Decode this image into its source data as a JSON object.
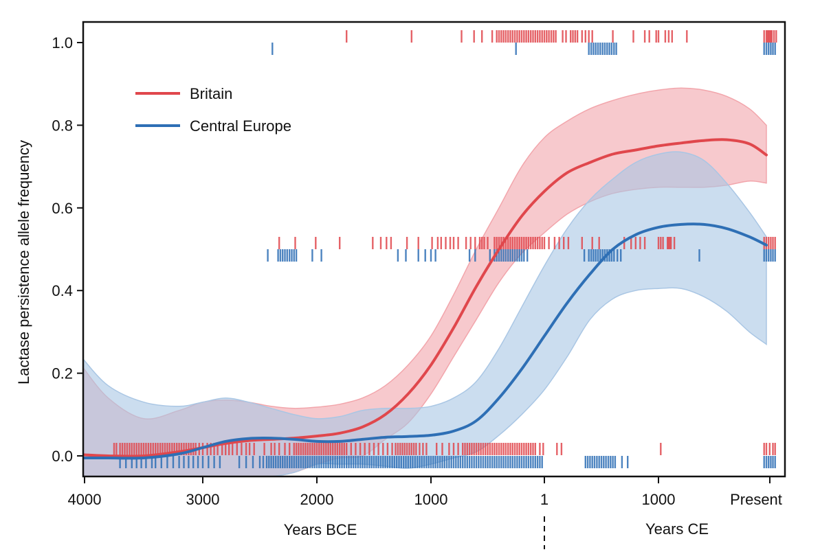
{
  "chart_data": {
    "type": "line",
    "title": "",
    "ylabel": "Lactase persistence allele frequency",
    "xlabel_left": "Years BCE",
    "xlabel_right": "Years CE",
    "xlim": [
      -4030,
      2120
    ],
    "ylim": [
      -0.05,
      1.05
    ],
    "grid": false,
    "legend_position": "top-left",
    "x_ticks": [
      {
        "value": -4000,
        "label": "4000"
      },
      {
        "value": -3000,
        "label": "3000"
      },
      {
        "value": -2000,
        "label": "2000"
      },
      {
        "value": -1000,
        "label": "1000"
      },
      {
        "value": 0,
        "label": "1"
      },
      {
        "value": 1000,
        "label": "1000"
      },
      {
        "value": 1950,
        "label": "Present"
      }
    ],
    "y_ticks": [
      {
        "value": 0.0,
        "label": "0.0"
      },
      {
        "value": 0.2,
        "label": "0.2"
      },
      {
        "value": 0.4,
        "label": "0.4"
      },
      {
        "value": 0.6,
        "label": "0.6"
      },
      {
        "value": 0.8,
        "label": "0.8"
      },
      {
        "value": 1.0,
        "label": "1.0"
      }
    ],
    "series": [
      {
        "name": "Britain",
        "color": "#e0474c",
        "band_color": "#f2a5ab",
        "x": [
          -4030,
          -3800,
          -3500,
          -3200,
          -3000,
          -2800,
          -2600,
          -2400,
          -2200,
          -2000,
          -1800,
          -1600,
          -1400,
          -1200,
          -1000,
          -800,
          -600,
          -400,
          -200,
          0,
          200,
          400,
          600,
          800,
          1000,
          1200,
          1400,
          1600,
          1800,
          1950
        ],
        "y": [
          0.003,
          0.0,
          0.0,
          0.01,
          0.02,
          0.03,
          0.037,
          0.04,
          0.043,
          0.048,
          0.055,
          0.07,
          0.1,
          0.15,
          0.22,
          0.31,
          0.41,
          0.5,
          0.58,
          0.64,
          0.685,
          0.71,
          0.73,
          0.74,
          0.75,
          0.757,
          0.763,
          0.765,
          0.755,
          0.728
        ],
        "upper": [
          0.22,
          0.14,
          0.09,
          0.11,
          0.13,
          0.135,
          0.13,
          0.12,
          0.115,
          0.118,
          0.125,
          0.14,
          0.17,
          0.22,
          0.29,
          0.39,
          0.5,
          0.6,
          0.7,
          0.77,
          0.81,
          0.84,
          0.86,
          0.875,
          0.885,
          0.89,
          0.885,
          0.87,
          0.84,
          0.8
        ],
        "lower": [
          -0.05,
          -0.05,
          -0.05,
          -0.05,
          -0.05,
          -0.05,
          -0.05,
          -0.05,
          -0.04,
          -0.02,
          -0.005,
          0.0,
          0.04,
          0.08,
          0.15,
          0.24,
          0.33,
          0.42,
          0.49,
          0.54,
          0.585,
          0.615,
          0.635,
          0.645,
          0.65,
          0.65,
          0.65,
          0.655,
          0.665,
          0.66
        ]
      },
      {
        "name": "Central Europe",
        "color": "#2e6fb5",
        "band_color": "#a9c6e4",
        "x": [
          -4030,
          -3800,
          -3500,
          -3200,
          -3000,
          -2800,
          -2600,
          -2400,
          -2200,
          -2000,
          -1800,
          -1600,
          -1400,
          -1200,
          -1000,
          -800,
          -600,
          -400,
          -200,
          0,
          200,
          400,
          600,
          800,
          1000,
          1200,
          1400,
          1600,
          1800,
          1950
        ],
        "y": [
          -0.005,
          -0.005,
          -0.005,
          0.005,
          0.02,
          0.035,
          0.042,
          0.043,
          0.04,
          0.035,
          0.035,
          0.04,
          0.045,
          0.047,
          0.05,
          0.06,
          0.085,
          0.14,
          0.21,
          0.29,
          0.37,
          0.44,
          0.5,
          0.535,
          0.553,
          0.56,
          0.56,
          0.55,
          0.53,
          0.51
        ],
        "upper": [
          0.24,
          0.17,
          0.13,
          0.12,
          0.13,
          0.14,
          0.13,
          0.115,
          0.1,
          0.09,
          0.095,
          0.11,
          0.115,
          0.115,
          0.12,
          0.14,
          0.18,
          0.26,
          0.36,
          0.46,
          0.55,
          0.62,
          0.67,
          0.71,
          0.73,
          0.735,
          0.715,
          0.66,
          0.59,
          0.53
        ],
        "lower": [
          -0.05,
          -0.05,
          -0.05,
          -0.05,
          -0.05,
          -0.05,
          -0.05,
          -0.05,
          -0.04,
          -0.02,
          -0.02,
          -0.02,
          -0.025,
          -0.03,
          -0.02,
          -0.005,
          0.01,
          0.05,
          0.1,
          0.16,
          0.24,
          0.33,
          0.38,
          0.4,
          0.405,
          0.405,
          0.385,
          0.35,
          0.3,
          0.27
        ]
      }
    ],
    "rug": {
      "note": "Individual sample genotype marks at allele frequency 0, 0.5, 1 (offset per series)",
      "rows": [
        {
          "series": "Britain",
          "level": 1.0,
          "x": [
            -1740,
            -1170,
            -730,
            -620,
            -550,
            -460,
            -420,
            -400,
            -380,
            -360,
            -340,
            -320,
            -300,
            -280,
            -260,
            -240,
            -220,
            -200,
            -180,
            -160,
            -140,
            -120,
            -100,
            -80,
            -60,
            -40,
            -20,
            0,
            20,
            40,
            60,
            80,
            100,
            160,
            190,
            230,
            250,
            270,
            290,
            330,
            360,
            390,
            420,
            600,
            780,
            880,
            920,
            980,
            1000,
            1060,
            1090,
            1120,
            1250,
            1930,
            1950,
            1960,
            1970,
            1980,
            1990,
            2000,
            2020,
            2040
          ]
        },
        {
          "series": "Central Europe",
          "level": 1.0,
          "x": [
            -2390,
            -250,
            390,
            410,
            430,
            450,
            470,
            490,
            510,
            530,
            550,
            570,
            590,
            610,
            630,
            1930,
            1950,
            1970,
            1990,
            2010,
            2030
          ]
        },
        {
          "series": "Britain",
          "level": 0.5,
          "x": [
            -2330,
            -2190,
            -2010,
            -1800,
            -1510,
            -1440,
            -1390,
            -1350,
            -1210,
            -1110,
            -990,
            -940,
            -910,
            -870,
            -830,
            -800,
            -760,
            -690,
            -650,
            -610,
            -570,
            -550,
            -530,
            -500,
            -440,
            -420,
            -400,
            -380,
            -360,
            -340,
            -320,
            -300,
            -280,
            -260,
            -240,
            -220,
            -200,
            -180,
            -160,
            -140,
            -120,
            -100,
            -80,
            -60,
            -40,
            -20,
            0,
            40,
            90,
            130,
            170,
            210,
            330,
            420,
            480,
            700,
            760,
            800,
            840,
            880,
            1000,
            1020,
            1040,
            1080,
            1090,
            1100,
            1110,
            1140,
            1930,
            1950,
            1970,
            1990,
            2010,
            2030
          ]
        },
        {
          "series": "Central Europe",
          "level": 0.5,
          "x": [
            -2430,
            -2340,
            -2320,
            -2300,
            -2280,
            -2260,
            -2240,
            -2220,
            -2200,
            -2180,
            -2040,
            -1960,
            -1290,
            -1220,
            -1110,
            -1050,
            -1000,
            -960,
            -660,
            -610,
            -480,
            -440,
            -420,
            -400,
            -380,
            -360,
            -340,
            -320,
            -300,
            -280,
            -260,
            -240,
            -220,
            -200,
            -180,
            -150,
            350,
            390,
            410,
            430,
            450,
            470,
            490,
            510,
            530,
            550,
            570,
            590,
            610,
            640,
            670,
            1360,
            1930,
            1950,
            1970,
            1990,
            2010,
            2030
          ]
        },
        {
          "series": "Britain",
          "level": 0.0,
          "x": [
            -3750,
            -3730,
            -3700,
            -3680,
            -3660,
            -3640,
            -3620,
            -3600,
            -3580,
            -3560,
            -3540,
            -3520,
            -3500,
            -3480,
            -3460,
            -3440,
            -3420,
            -3400,
            -3380,
            -3360,
            -3340,
            -3320,
            -3300,
            -3280,
            -3260,
            -3240,
            -3220,
            -3200,
            -3180,
            -3160,
            -3140,
            -3120,
            -3100,
            -3080,
            -3060,
            -3030,
            -3000,
            -2960,
            -2930,
            -2900,
            -2870,
            -2830,
            -2800,
            -2770,
            -2740,
            -2700,
            -2660,
            -2620,
            -2590,
            -2550,
            -2460,
            -2400,
            -2370,
            -2330,
            -2280,
            -2240,
            -2200,
            -2180,
            -2160,
            -2140,
            -2120,
            -2100,
            -2080,
            -2060,
            -2040,
            -2020,
            -2000,
            -1980,
            -1960,
            -1940,
            -1920,
            -1900,
            -1880,
            -1860,
            -1840,
            -1820,
            -1800,
            -1780,
            -1760,
            -1740,
            -1700,
            -1660,
            -1620,
            -1580,
            -1540,
            -1500,
            -1460,
            -1420,
            -1380,
            -1340,
            -1310,
            -1290,
            -1270,
            -1250,
            -1230,
            -1210,
            -1190,
            -1170,
            -1150,
            -1130,
            -1100,
            -1070,
            -1040,
            -950,
            -900,
            -840,
            -800,
            -760,
            -720,
            -700,
            -680,
            -660,
            -640,
            -620,
            -600,
            -580,
            -560,
            -540,
            -520,
            -500,
            -480,
            -460,
            -440,
            -420,
            -400,
            -380,
            -360,
            -340,
            -320,
            -300,
            -280,
            -260,
            -240,
            -220,
            -200,
            -180,
            -160,
            -140,
            -120,
            -100,
            -80,
            -40,
            -10,
            110,
            150,
            1020,
            1930,
            1950,
            1980,
            2010,
            2030
          ]
        },
        {
          "series": "Central Europe",
          "level": 0.0,
          "x": [
            -3700,
            -3650,
            -3600,
            -3560,
            -3520,
            -3480,
            -3430,
            -3400,
            -3350,
            -3300,
            -3250,
            -3200,
            -3160,
            -3120,
            -3080,
            -3040,
            -3000,
            -2950,
            -2900,
            -2850,
            -2680,
            -2620,
            -2560,
            -2500,
            -2470,
            -2440,
            -2420,
            -2400,
            -2380,
            -2360,
            -2340,
            -2320,
            -2300,
            -2280,
            -2260,
            -2240,
            -2220,
            -2200,
            -2180,
            -2160,
            -2140,
            -2120,
            -2100,
            -2080,
            -2060,
            -2040,
            -2020,
            -2000,
            -1980,
            -1960,
            -1940,
            -1920,
            -1900,
            -1880,
            -1860,
            -1840,
            -1820,
            -1800,
            -1780,
            -1760,
            -1740,
            -1720,
            -1700,
            -1680,
            -1660,
            -1640,
            -1620,
            -1600,
            -1580,
            -1560,
            -1540,
            -1520,
            -1500,
            -1480,
            -1460,
            -1440,
            -1420,
            -1400,
            -1380,
            -1360,
            -1340,
            -1320,
            -1300,
            -1280,
            -1260,
            -1240,
            -1220,
            -1200,
            -1180,
            -1160,
            -1140,
            -1120,
            -1100,
            -1080,
            -1060,
            -1040,
            -1020,
            -1000,
            -980,
            -960,
            -940,
            -920,
            -900,
            -880,
            -860,
            -840,
            -820,
            -800,
            -780,
            -760,
            -740,
            -720,
            -700,
            -680,
            -660,
            -640,
            -620,
            -600,
            -580,
            -560,
            -540,
            -520,
            -500,
            -480,
            -460,
            -440,
            -420,
            -400,
            -380,
            -360,
            -340,
            -320,
            -300,
            -280,
            -260,
            -240,
            -220,
            -200,
            -180,
            -160,
            -140,
            -120,
            -100,
            -80,
            -60,
            -40,
            -20,
            360,
            380,
            400,
            420,
            440,
            460,
            480,
            500,
            520,
            540,
            560,
            580,
            600,
            620,
            680,
            730,
            1930,
            1950,
            1970,
            1990,
            2010,
            2030
          ]
        }
      ]
    }
  },
  "legend": {
    "items": [
      {
        "label": "Britain",
        "color": "#e0474c"
      },
      {
        "label": "Central Europe",
        "color": "#2e6fb5"
      }
    ]
  }
}
